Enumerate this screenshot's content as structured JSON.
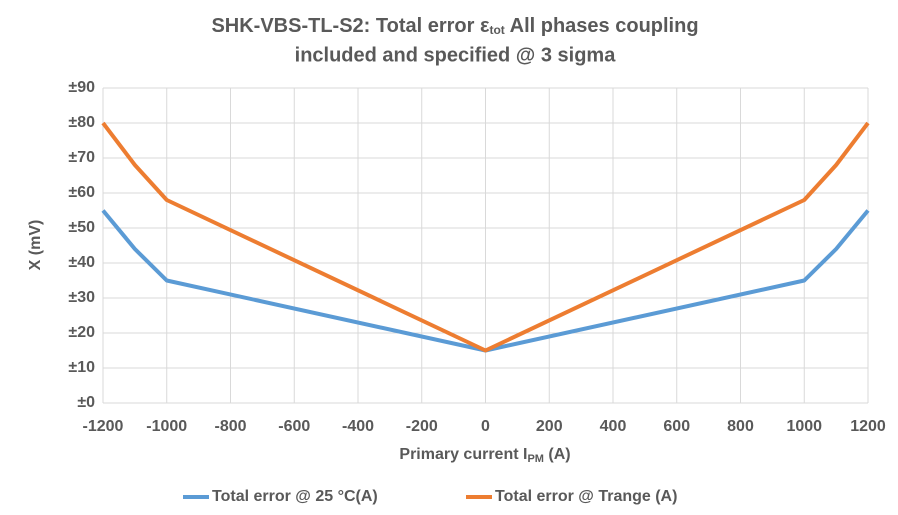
{
  "chart_data": {
    "type": "line",
    "title": {
      "line1": "SHK-VBS-TL-S2: Total error ε",
      "line1_subscript": "tot",
      "line1_end": " All phases coupling",
      "line2": "included and specified @ 3 sigma"
    },
    "x_label": {
      "text": "Primary current I",
      "subscript": "PM",
      "end": " (A)"
    },
    "y_label": "X (mV)",
    "x": [
      -1200,
      -1100,
      -1000,
      0,
      1000,
      1100,
      1200
    ],
    "series": [
      {
        "name": "Total error @ 25 °C(A)",
        "color": "#5b9bd5",
        "values": [
          55,
          44,
          35,
          15,
          35,
          44,
          55
        ]
      },
      {
        "name": "Total error @ Trange (A)",
        "color": "#ed7d31",
        "values": [
          80,
          68,
          58,
          15,
          58,
          68,
          80
        ]
      }
    ],
    "xlim": [
      -1200,
      1200
    ],
    "xticks": [
      -1200,
      -1000,
      -800,
      -600,
      -400,
      -200,
      0,
      200,
      400,
      600,
      800,
      1000,
      1200
    ],
    "ylim": [
      0,
      90
    ],
    "yticks": [
      {
        "value": 0,
        "label": "±0"
      },
      {
        "value": 10,
        "label": "±10"
      },
      {
        "value": 20,
        "label": "±20"
      },
      {
        "value": 30,
        "label": "±30"
      },
      {
        "value": 40,
        "label": "±40"
      },
      {
        "value": 50,
        "label": "±50"
      },
      {
        "value": 60,
        "label": "±60"
      },
      {
        "value": 70,
        "label": "±70"
      },
      {
        "value": 80,
        "label": "±80"
      },
      {
        "value": 90,
        "label": "±90"
      }
    ],
    "grid": true,
    "legend": "bottom"
  }
}
